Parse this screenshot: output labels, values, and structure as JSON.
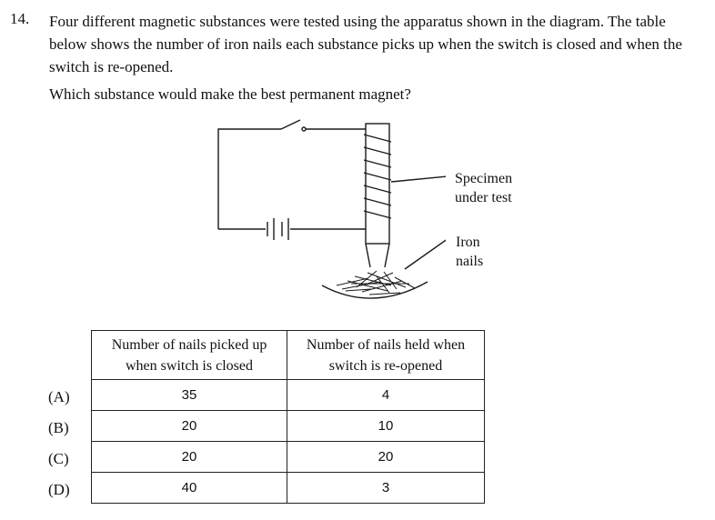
{
  "question": {
    "number": "14.",
    "stem": "Four different magnetic substances were tested using the apparatus shown in the diagram. The table below shows the number of iron nails each substance picks up when the switch is closed and when the switch is re-opened.",
    "ask": "Which substance would make the best permanent magnet?"
  },
  "diagram": {
    "label_specimen_line1": "Specimen",
    "label_specimen_line2": "under test",
    "label_nails": "Iron nails",
    "stroke_color": "#1a1a1a"
  },
  "table": {
    "headers": [
      "Number of nails picked up when switch is closed",
      "Number of nails held when switch is re-opened"
    ],
    "rows": [
      {
        "option": "(A)",
        "closed": "35",
        "reopened": "4"
      },
      {
        "option": "(B)",
        "closed": "20",
        "reopened": "10"
      },
      {
        "option": "(C)",
        "closed": "20",
        "reopened": "20"
      },
      {
        "option": "(D)",
        "closed": "40",
        "reopened": "3"
      }
    ]
  }
}
